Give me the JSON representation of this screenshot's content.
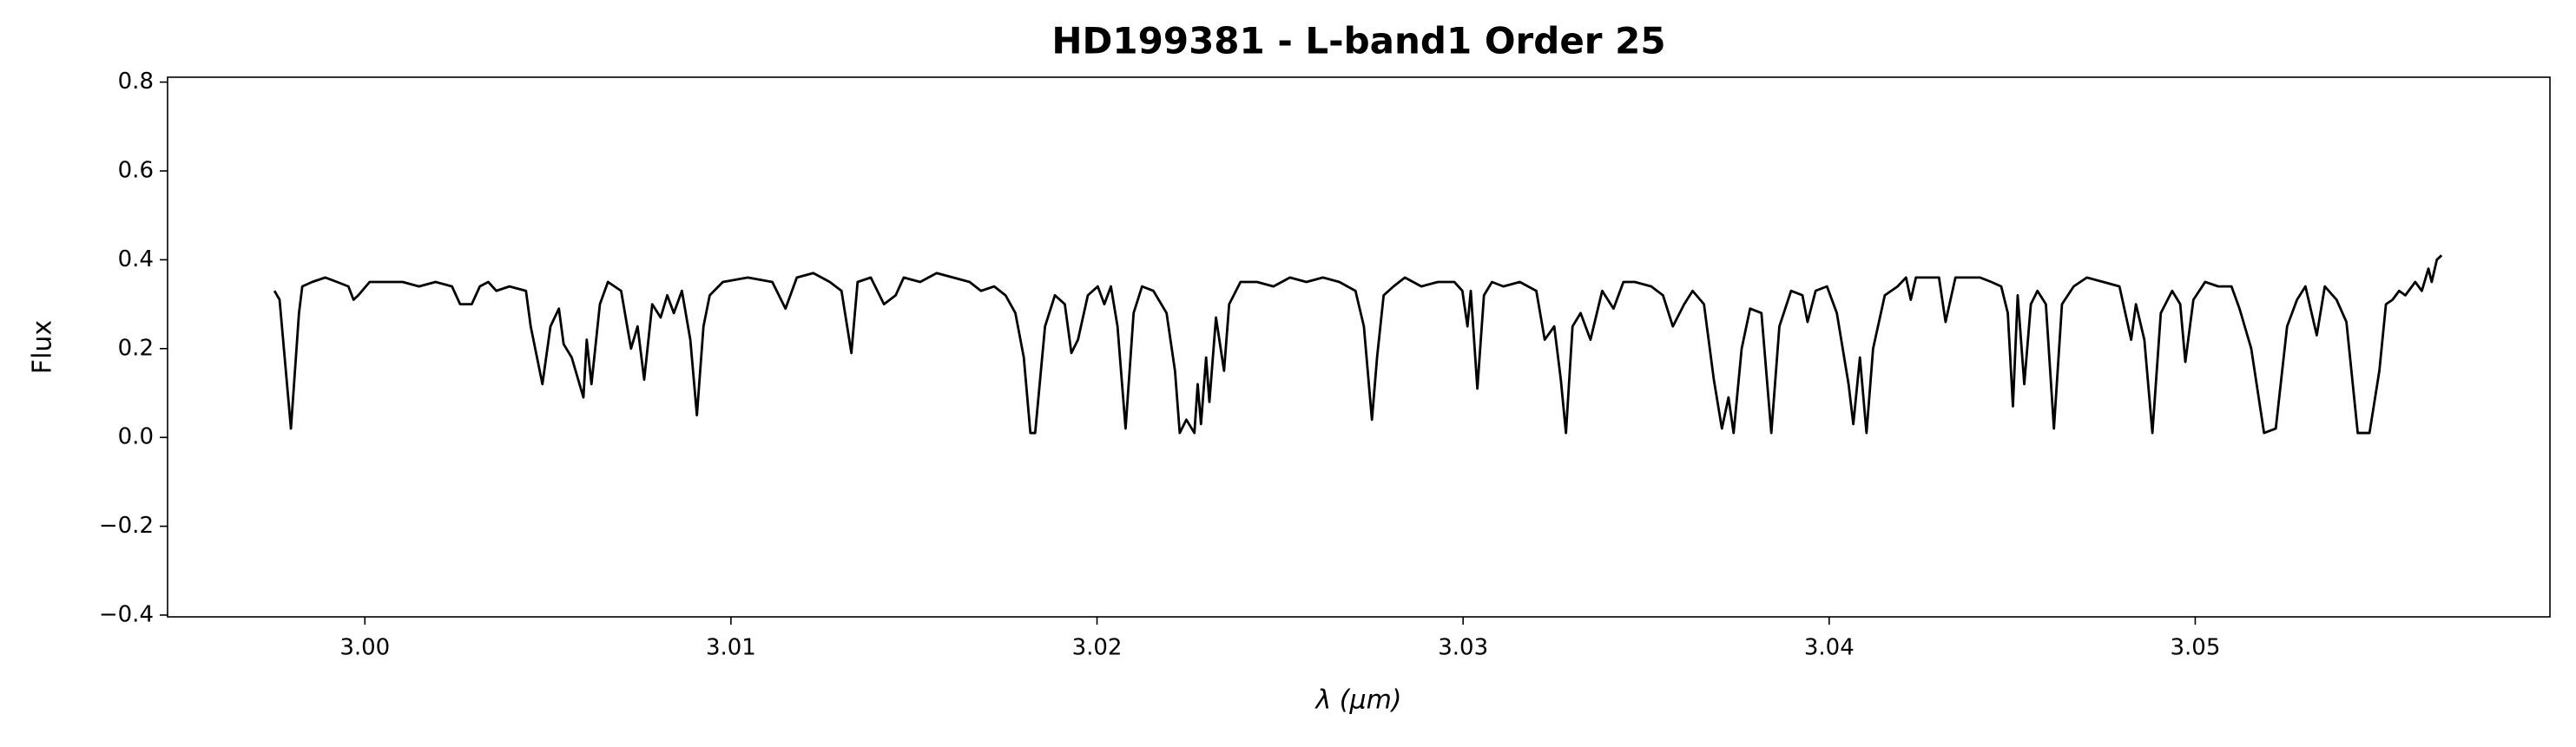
{
  "chart_data": {
    "type": "line",
    "title": "HD199381 - L-band1 Order 25",
    "x_label": "λ (μm)",
    "y_label": "Flux",
    "color": "#000000",
    "grid": false,
    "xlim": [
      2.99461,
      3.05969
    ],
    "ylim": [
      -0.404,
      0.811
    ],
    "xticks": [
      {
        "value": 3,
        "label": "3.00"
      },
      3.01,
      3.02,
      3.03,
      3.04,
      3.05
    ],
    "yticks": [
      {
        "value": -0.4,
        "label": "−0.4"
      },
      {
        "value": -0.2,
        "label": "−0.2"
      },
      {
        "value": 0,
        "label": "0.0"
      },
      0.2,
      0.4,
      0.6,
      0.8
    ],
    "x": [
      2.99753,
      2.99767,
      2.99798,
      2.9982,
      2.99829,
      2.99856,
      2.99892,
      2.99924,
      2.99955,
      2.99969,
      2.99982,
      3.00013,
      3.00058,
      3.00103,
      3.00148,
      3.00193,
      3.00238,
      3.0026,
      3.00292,
      3.00314,
      3.00337,
      3.00359,
      3.00395,
      3.0044,
      3.00453,
      3.00485,
      3.00507,
      3.0053,
      3.00543,
      3.00565,
      3.00597,
      3.00606,
      3.00619,
      3.00642,
      3.00664,
      3.007,
      3.00727,
      3.00745,
      3.00763,
      3.00785,
      3.00808,
      3.00826,
      3.00844,
      3.00866,
      3.00889,
      3.00907,
      3.00925,
      3.00942,
      3.00978,
      3.01046,
      3.01113,
      3.01149,
      3.0118,
      3.01225,
      3.0127,
      3.01302,
      3.01329,
      3.01346,
      3.01382,
      3.01418,
      3.0145,
      3.01472,
      3.01517,
      3.01562,
      3.01607,
      3.01652,
      3.01683,
      3.01719,
      3.0175,
      3.01777,
      3.018,
      3.01818,
      3.01831,
      3.01858,
      3.01885,
      3.01912,
      3.0193,
      3.01948,
      3.01975,
      3.02002,
      3.0202,
      3.02038,
      3.02056,
      3.02078,
      3.021,
      3.02123,
      3.02154,
      3.0219,
      3.02213,
      3.02226,
      3.02244,
      3.02266,
      3.02275,
      3.02284,
      3.02298,
      3.02307,
      3.02325,
      3.02347,
      3.02361,
      3.02392,
      3.02437,
      3.02482,
      3.02527,
      3.02572,
      3.02617,
      3.02662,
      3.02706,
      3.02729,
      3.02751,
      3.02765,
      3.02783,
      3.0281,
      3.02841,
      3.02886,
      3.02931,
      3.02976,
      3.02998,
      3.03012,
      3.03021,
      3.03039,
      3.03057,
      3.03079,
      3.0311,
      3.03155,
      3.032,
      3.03223,
      3.03249,
      3.03267,
      3.03281,
      3.03299,
      3.03321,
      3.03348,
      3.0338,
      3.03411,
      3.03438,
      3.03469,
      3.03514,
      3.03546,
      3.03573,
      3.03604,
      3.03627,
      3.03658,
      3.03685,
      3.03707,
      3.03725,
      3.03739,
      3.03761,
      3.03784,
      3.03815,
      3.03842,
      3.03864,
      3.03896,
      3.03927,
      3.03941,
      3.03963,
      3.03994,
      3.04021,
      3.04053,
      3.04066,
      3.04084,
      3.04102,
      3.0412,
      3.04152,
      3.04187,
      3.0421,
      3.04223,
      3.04237,
      3.04264,
      3.043,
      3.04318,
      3.04345,
      3.0438,
      3.04412,
      3.04443,
      3.0447,
      3.04488,
      3.04502,
      3.04515,
      3.04533,
      3.04551,
      3.04569,
      3.04592,
      3.04614,
      3.04636,
      3.04668,
      3.04704,
      3.04749,
      3.04793,
      3.04825,
      3.04838,
      3.04861,
      3.04883,
      3.04906,
      3.04937,
      3.04959,
      3.04973,
      3.04995,
      3.05027,
      3.05063,
      3.05099,
      3.05121,
      3.05153,
      3.05188,
      3.0522,
      3.05251,
      3.05278,
      3.05301,
      3.05332,
      3.05354,
      3.05386,
      3.05413,
      3.05444,
      3.05476,
      3.05503,
      3.05521,
      3.05539,
      3.05557,
      3.05574,
      3.05601,
      3.05619,
      3.05637,
      3.05646,
      3.0566,
      3.05673
    ],
    "values": [
      0.33,
      0.31,
      0.02,
      0.28,
      0.34,
      0.35,
      0.36,
      0.35,
      0.34,
      0.31,
      0.32,
      0.35,
      0.35,
      0.35,
      0.34,
      0.35,
      0.34,
      0.3,
      0.3,
      0.34,
      0.35,
      0.33,
      0.34,
      0.33,
      0.25,
      0.12,
      0.25,
      0.29,
      0.21,
      0.18,
      0.09,
      0.22,
      0.12,
      0.3,
      0.35,
      0.33,
      0.2,
      0.25,
      0.13,
      0.3,
      0.27,
      0.32,
      0.28,
      0.33,
      0.22,
      0.05,
      0.25,
      0.32,
      0.35,
      0.36,
      0.35,
      0.29,
      0.36,
      0.37,
      0.35,
      0.33,
      0.19,
      0.35,
      0.36,
      0.3,
      0.32,
      0.36,
      0.35,
      0.37,
      0.36,
      0.35,
      0.33,
      0.34,
      0.32,
      0.28,
      0.18,
      0.01,
      0.01,
      0.25,
      0.32,
      0.3,
      0.19,
      0.22,
      0.32,
      0.34,
      0.3,
      0.34,
      0.25,
      0.02,
      0.28,
      0.34,
      0.33,
      0.28,
      0.15,
      0.01,
      0.04,
      0.01,
      0.12,
      0.03,
      0.18,
      0.08,
      0.27,
      0.15,
      0.3,
      0.35,
      0.35,
      0.34,
      0.36,
      0.35,
      0.36,
      0.35,
      0.33,
      0.25,
      0.04,
      0.18,
      0.32,
      0.34,
      0.36,
      0.34,
      0.35,
      0.35,
      0.33,
      0.25,
      0.33,
      0.11,
      0.32,
      0.35,
      0.34,
      0.35,
      0.33,
      0.22,
      0.25,
      0.13,
      0.01,
      0.25,
      0.28,
      0.22,
      0.33,
      0.29,
      0.35,
      0.35,
      0.34,
      0.32,
      0.25,
      0.3,
      0.33,
      0.3,
      0.13,
      0.02,
      0.09,
      0.01,
      0.2,
      0.29,
      0.28,
      0.01,
      0.25,
      0.33,
      0.32,
      0.26,
      0.33,
      0.34,
      0.28,
      0.12,
      0.03,
      0.18,
      0.01,
      0.2,
      0.32,
      0.34,
      0.36,
      0.31,
      0.36,
      0.36,
      0.36,
      0.26,
      0.36,
      0.36,
      0.36,
      0.35,
      0.34,
      0.28,
      0.07,
      0.32,
      0.12,
      0.3,
      0.33,
      0.3,
      0.02,
      0.3,
      0.34,
      0.36,
      0.35,
      0.34,
      0.22,
      0.3,
      0.22,
      0.01,
      0.28,
      0.33,
      0.3,
      0.17,
      0.31,
      0.35,
      0.34,
      0.34,
      0.29,
      0.2,
      0.01,
      0.02,
      0.25,
      0.31,
      0.34,
      0.23,
      0.34,
      0.31,
      0.26,
      0.01,
      0.01,
      0.15,
      0.3,
      0.31,
      0.33,
      0.32,
      0.35,
      0.33,
      0.38,
      0.35,
      0.4,
      0.41
    ]
  }
}
